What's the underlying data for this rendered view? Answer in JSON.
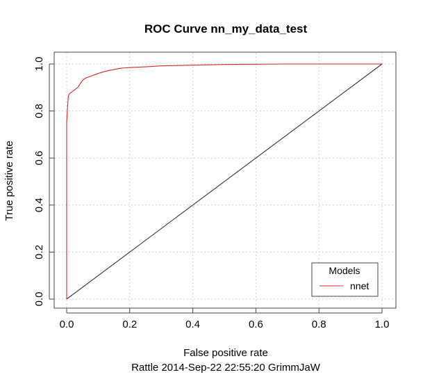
{
  "chart_data": {
    "type": "line",
    "title": "ROC Curve  nn_my_data_test",
    "xlabel": "False positive rate",
    "ylabel": "True positive rate",
    "subtitle": "Rattle 2014-Sep-22 22:55:20 GrimmJaW",
    "xlim": [
      0,
      1
    ],
    "ylim": [
      0,
      1
    ],
    "x_ticks": [
      "0.0",
      "0.2",
      "0.4",
      "0.6",
      "0.8",
      "1.0"
    ],
    "y_ticks": [
      "0.0",
      "0.2",
      "0.4",
      "0.6",
      "0.8",
      "1.0"
    ],
    "grid": true,
    "legend": {
      "title": "Models",
      "placement": "bottom-right",
      "entries": [
        {
          "label": "nnet",
          "color": "#d62728"
        }
      ]
    },
    "series": [
      {
        "name": "nnet",
        "color": "#d62728",
        "x": [
          0.0,
          0.0,
          0.002,
          0.004,
          0.005,
          0.007,
          0.01,
          0.015,
          0.02,
          0.025,
          0.03,
          0.035,
          0.04,
          0.045,
          0.05,
          0.055,
          0.06,
          0.07,
          0.08,
          0.09,
          0.1,
          0.12,
          0.14,
          0.16,
          0.18,
          0.2,
          0.25,
          0.3,
          0.4,
          0.5,
          0.6,
          0.7,
          0.8,
          0.9,
          1.0
        ],
        "y": [
          0.0,
          0.75,
          0.8,
          0.84,
          0.86,
          0.87,
          0.875,
          0.88,
          0.885,
          0.89,
          0.895,
          0.9,
          0.91,
          0.92,
          0.93,
          0.935,
          0.94,
          0.945,
          0.95,
          0.955,
          0.96,
          0.968,
          0.974,
          0.979,
          0.983,
          0.985,
          0.988,
          0.992,
          0.995,
          0.998,
          0.999,
          1.0,
          1.0,
          1.0,
          1.0
        ]
      },
      {
        "name": "",
        "color": "#333333",
        "x": [
          0,
          1
        ],
        "y": [
          0,
          1
        ]
      }
    ]
  }
}
